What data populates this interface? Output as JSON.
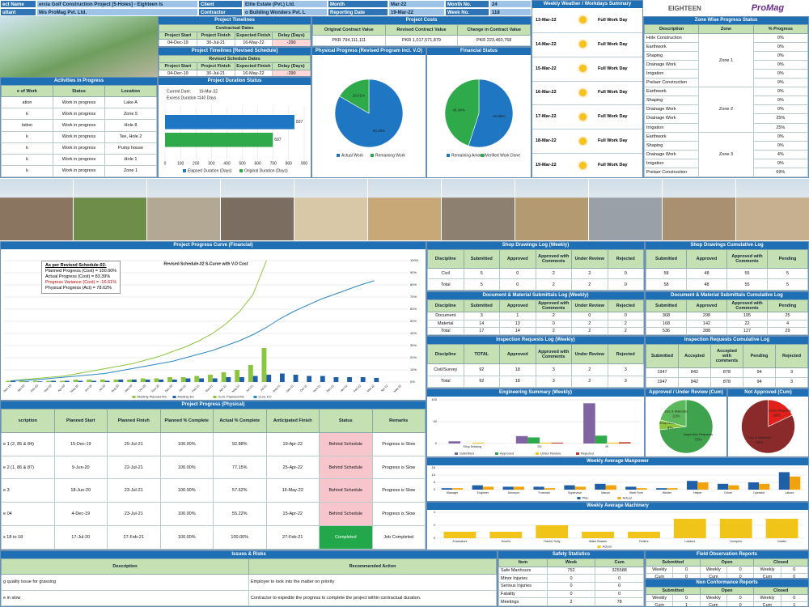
{
  "header": {
    "rows": [
      [
        "ect Name",
        "ercia Golf Construction Project [5-Holes] - Eighteen Is",
        "Client",
        "Elite Estate (Pvt.) Ltd.",
        "Month",
        "Mar-22",
        "Month No.",
        "24"
      ],
      [
        "ultant",
        "M/s ProMag Pvt. Ltd.",
        "Contractor",
        "o Building Wonders Pvt. L",
        "Reporting Date",
        "19-Mar-22",
        "Week No.",
        "118"
      ]
    ]
  },
  "logos": [
    "EIGHTEEN",
    "ProMag"
  ],
  "timelines": {
    "title": "Project Timelines",
    "subtitle": "Contractual Dates",
    "columns": [
      "Project Start",
      "Project Finish",
      "Expected Finish",
      "Delay (Days)"
    ],
    "rows": [
      [
        "04-Dec-19",
        "30-Jul-21",
        "16-May-22",
        {
          "text": "-290",
          "color": "#ffd7d7"
        }
      ]
    ]
  },
  "revised": {
    "title": "Project Timelines [Revised Schedule]",
    "subtitle": "Revised Schedule Dates",
    "columns": [
      "Project Start",
      "Project Finish",
      "Expected Finish",
      "Delay (Days)"
    ],
    "rows": [
      [
        "04-Dec-19",
        "30-Jul-21",
        "16-May-22",
        {
          "text": "-290",
          "color": "#ffd7d7"
        }
      ]
    ]
  },
  "costs": {
    "title": "Project Costs",
    "columns": [
      "Original Contract Value",
      "Revised Contract Value",
      "Change in Contract Value"
    ],
    "rows": [
      [
        "PKR 794,111,111",
        "PKR 1,017,571,879",
        "PKR 223,460,768"
      ]
    ]
  },
  "activities": {
    "title": "Activities in Progress",
    "columns": [
      "e of Work",
      "Status",
      "Location"
    ],
    "rows": [
      [
        "ation",
        "Work in progress",
        "Lake A"
      ],
      [
        "k",
        "Work in progress",
        "Zone 5"
      ],
      [
        "lation",
        "Work in progress",
        "Hole 8"
      ],
      [
        "k",
        "Work in progress",
        "Tee, Hole 2"
      ],
      [
        "k",
        "Work in progress",
        "Pump house"
      ],
      [
        "k",
        "Work in progress",
        "Hole 1"
      ],
      [
        "k",
        "Work in progress",
        "Zone 1"
      ]
    ]
  },
  "duration": {
    "title": "Project Duration Status",
    "info": [
      "Current Date:",
      "19-Mar-22",
      "Excess Duration =",
      "140 Days"
    ],
    "chart": {
      "type": "hbar",
      "series": [
        {
          "name": "Elapsed Duration (Days)",
          "color": "#1f77c4",
          "values": [
            837
          ]
        },
        {
          "name": "Original Duration (Days)",
          "color": "#2eaa4a",
          "values": [
            697
          ]
        }
      ],
      "xlim": [
        0,
        900
      ],
      "xticks": [
        0,
        100,
        200,
        300,
        400,
        500,
        600,
        700,
        800,
        900
      ],
      "grid": true
    }
  },
  "physical_pie": {
    "title": "Physical Progress (Revised Program incl. V.O)",
    "chart": {
      "type": "pie",
      "categories": [
        "Actual Work",
        "Remaining Work"
      ],
      "values": [
        83.39,
        16.61
      ],
      "value_labels": [
        "83.39%",
        "16.61%"
      ],
      "colors": [
        "#1f77c4",
        "#2eaa4a"
      ]
    }
  },
  "financial_pie": {
    "title": "Financial Status",
    "chart": {
      "type": "pie",
      "categories": [
        "Remaining Amount",
        "Verified Work Done"
      ],
      "values": [
        54.96,
        45.04
      ],
      "value_labels": [
        "54.96%",
        "45.04%"
      ],
      "colors": [
        "#1f77c4",
        "#2eaa4a"
      ]
    }
  },
  "weather": {
    "title": "Weekly Weather / Workdays Summary",
    "days": [
      {
        "date": "13-Mar-22",
        "condition": "Full Work Day"
      },
      {
        "date": "14-Mar-22",
        "condition": "Full Work Day"
      },
      {
        "date": "15-Mar-22",
        "condition": "Full Work Day"
      },
      {
        "date": "16-Mar-22",
        "condition": "Full Work Day"
      },
      {
        "date": "17-Mar-22",
        "condition": "Full Work Day"
      },
      {
        "date": "18-Mar-22",
        "condition": "Full Work Day"
      },
      {
        "date": "19-Mar-22",
        "condition": "Full Work Day"
      }
    ]
  },
  "zones": {
    "title": "Zone Wise Progress Status",
    "columns": [
      "Description",
      "Zone",
      "% Progress"
    ],
    "groups": [
      {
        "zone": "Zone 1",
        "items": [
          [
            "Hole Construction",
            "0%"
          ],
          [
            "Earthwork",
            "0%"
          ],
          [
            "Shaping",
            "0%"
          ],
          [
            "Drainage Work",
            "0%"
          ],
          [
            "Irrigation",
            "0%"
          ],
          [
            "Prelaer Construction",
            "0%"
          ]
        ]
      },
      {
        "zone": "Zone 2",
        "items": [
          [
            "Earthwork",
            "0%"
          ],
          [
            "Shaping",
            "0%"
          ],
          [
            "Drainage Work",
            "0%"
          ],
          [
            "Drainage Work",
            "25%"
          ],
          [
            "Irrigation",
            "25%"
          ]
        ]
      },
      {
        "zone": "Zone 3",
        "items": [
          [
            "Earthwork",
            "0%"
          ],
          [
            "Shaping",
            "0%"
          ],
          [
            "Drainage Work",
            "4%"
          ],
          [
            "Irrigation",
            "0%"
          ],
          [
            "Prelaer Construction",
            "69%"
          ]
        ]
      }
    ]
  },
  "scurve": {
    "title": "Project Progress Curve (Financial)",
    "summary": [
      "As per Revised Schedule-02-",
      "Planned Progress (Cost) = 100.00%",
      "Actual Progress (Cost) = 83.39%",
      "Progress Variance (Cost) = -16.61%",
      "Physical Progress (Act) = 78.62%"
    ],
    "chart": {
      "type": "bar",
      "title": "Revised Schedule-02 S-Curve with V.O Cost",
      "categories": [
        "Dec-19",
        "Jan-20",
        "Feb-20",
        "Mar-20",
        "Apr-20",
        "May-20",
        "Jun-20",
        "Jul-20",
        "Aug-20",
        "Sep-20",
        "Oct-20",
        "Nov-20",
        "Dec-20",
        "Jan-21",
        "Feb-21",
        "Mar-21",
        "Apr-21",
        "May-21",
        "Jun-21",
        "Jul-21",
        "Aug-21",
        "Sep-21",
        "Oct-21",
        "Nov-21",
        "Dec-21",
        "Jan-22",
        "Feb-22",
        "Mar-22",
        "Apr-22",
        "May-22"
      ],
      "series": [
        {
          "name": "Monthly Planned RS",
          "color": "#8cc63f",
          "values": [
            1,
            1,
            1,
            1,
            1,
            2,
            2,
            2,
            2,
            2,
            3,
            3,
            4,
            4,
            5,
            6,
            8,
            10,
            14,
            28,
            null,
            null,
            null,
            null,
            null,
            null,
            null,
            null,
            null,
            null
          ]
        },
        {
          "name": "Monthly EV",
          "color": "#1f5fa8",
          "values": [
            1,
            0.5,
            0.5,
            1,
            1,
            1,
            1,
            1,
            2,
            2,
            2,
            2,
            2,
            3,
            3,
            3,
            4,
            4,
            5,
            6,
            7,
            6,
            5,
            5,
            4,
            4,
            4,
            3.39,
            null,
            null
          ]
        },
        {
          "name": "Cum. Planned RS",
          "color": "#8cc63f",
          "kind": "line",
          "values": [
            1,
            2,
            3,
            4,
            5,
            7,
            9,
            11,
            13,
            15,
            18,
            21,
            25,
            29,
            34,
            40,
            48,
            58,
            72,
            100,
            null,
            null,
            null,
            null,
            null,
            null,
            null,
            null,
            null,
            null
          ]
        },
        {
          "name": "Cum. EV",
          "color": "#2e86c1",
          "kind": "line",
          "values": [
            1,
            1.5,
            2,
            3,
            4,
            5,
            6,
            7,
            9,
            11,
            13,
            15,
            17,
            20,
            23,
            26,
            30,
            34,
            39,
            45,
            52,
            58,
            63,
            68,
            72,
            76,
            80,
            83.39,
            null,
            null
          ]
        }
      ],
      "ylim": [
        0,
        100
      ],
      "yticks": [
        {
          "value": 0,
          "label": "0%"
        },
        {
          "value": 10,
          "label": "10%"
        },
        {
          "value": 20,
          "label": "20%"
        },
        {
          "value": 30,
          "label": "30%"
        },
        {
          "value": 40,
          "label": "40%"
        },
        {
          "value": 50,
          "label": "50%"
        },
        {
          "value": 60,
          "label": "60%"
        },
        {
          "value": 70,
          "label": "70%"
        },
        {
          "value": 80,
          "label": "80%"
        },
        {
          "value": 90,
          "label": "90%"
        },
        {
          "value": 100,
          "label": "100%"
        }
      ],
      "y_axis_side": "right",
      "grid": true
    }
  },
  "physical_table": {
    "title": "Project Progress (Physical)",
    "columns": [
      "scription",
      "Planned Start",
      "Planned Finish",
      "Planned % Complete",
      "Actual % Complete",
      "Anticipated Finish",
      "Status",
      "Remarks"
    ],
    "rows": [
      [
        "e 1 (2, 85 & 84)",
        "15-Dec-19",
        "25-Jul-21",
        "100.00%",
        "92.88%",
        "19-Apr-22",
        {
          "text": "Behind Schedule",
          "color": "#f6c6cc"
        },
        "Progress is Slow"
      ],
      [
        "e 2 (1, 86 & 87)",
        "9-Jun-20",
        "22-Jul-21",
        "100.00%",
        "77.15%",
        "25-Apr-22",
        {
          "text": "Behind Schedule",
          "color": "#f6c6cc"
        },
        "Progress is Slow"
      ],
      [
        "e 3",
        "18-Jun-20",
        "23-Jul-21",
        "100.00%",
        "57.62%",
        "16-May-22",
        {
          "text": "Behind Schedule",
          "color": "#f6c6cc"
        },
        "Progress is Slow"
      ],
      [
        "e 04",
        "4-Dec-19",
        "23-Jul-21",
        "100.00%",
        "55.22%",
        "15-Apr-22",
        {
          "text": "Behind Schedule",
          "color": "#f6c6cc"
        },
        "Progress is Slow"
      ],
      [
        "s 18 to 18",
        "17-Jul-20",
        "27-Feb-21",
        "100.00%",
        "100.00%",
        "27-Feb-21",
        {
          "text": "Completed",
          "color": "#22a84a"
        },
        "Job Completed"
      ]
    ]
  },
  "shop_weekly": {
    "title": "Shop Drawings Log (Weekly)",
    "columns": [
      "Discipline",
      "Submitted",
      "Approved",
      "Approved with Comments",
      "Under Review",
      "Rejected"
    ],
    "rows": [
      [
        "Civil",
        "5",
        "0",
        "2",
        "2",
        "0"
      ],
      [
        "Total",
        "5",
        "0",
        "2",
        "2",
        "0"
      ]
    ]
  },
  "shop_cum": {
    "title": "Shop Drawings Cumulative Log",
    "columns": [
      "Submitted",
      "Approved",
      "Approved with Comments",
      "Pending"
    ],
    "rows": [
      [
        "58",
        "48",
        "55",
        "5"
      ],
      [
        "58",
        "48",
        "55",
        "5"
      ]
    ]
  },
  "doc_weekly": {
    "title": "Document & Material Submittals Log (Weekly)",
    "columns": [
      "Discipline",
      "Submitted",
      "Approved",
      "Approved with Comments",
      "Under Review",
      "Rejected"
    ],
    "rows": [
      [
        "Document",
        "3",
        "1",
        "2",
        "0",
        "0"
      ],
      [
        "Material",
        "14",
        "13",
        "0",
        "2",
        "2"
      ],
      [
        "Total",
        "17",
        "14",
        "2",
        "2",
        "2"
      ]
    ]
  },
  "doc_cum": {
    "title": "Document & Material Submittals Cumulative Log",
    "columns": [
      "Submitted",
      "Approved",
      "Approved with Comments",
      "Pending"
    ],
    "rows": [
      [
        "368",
        "298",
        "105",
        "25"
      ],
      [
        "168",
        "142",
        "22",
        "4"
      ],
      [
        "536",
        "388",
        "127",
        "29"
      ]
    ]
  },
  "insp_weekly": {
    "title": "Inspection Requests Log (Weekly)",
    "columns": [
      "Discipline",
      "TOTAL",
      "Approved",
      "Approved with Comments",
      "Under Review",
      "Rejected"
    ],
    "rows": [
      [
        "Civil/Survey",
        "92",
        "18",
        "3",
        "2",
        "3"
      ],
      [
        "Total",
        "92",
        "18",
        "3",
        "2",
        "3"
      ]
    ]
  },
  "insp_cum": {
    "title": "Inspection Requests Cumulative Log",
    "columns": [
      "Submitted",
      "Accepted",
      "Accepted with comments",
      "Pending",
      "Rejected"
    ],
    "rows": [
      [
        "1947",
        "842",
        "878",
        "94",
        "3"
      ],
      [
        "1947",
        "842",
        "878",
        "94",
        "3"
      ]
    ]
  },
  "eng_summary": {
    "title": "Engineering Summary (Weekly)",
    "chart": {
      "type": "bar",
      "categories": [
        "Shop Drawing",
        "DS",
        "IR"
      ],
      "series": [
        {
          "name": "Submitted",
          "color": "#8064a2",
          "values": [
            5,
            17,
            92
          ]
        },
        {
          "name": "Approved",
          "color": "#2eaa4a",
          "values": [
            0,
            14,
            18
          ]
        },
        {
          "name": "Under Review",
          "color": "#f0c419",
          "values": [
            2,
            2,
            2
          ]
        },
        {
          "name": "Rejected",
          "color": "#c0392b",
          "values": [
            0,
            2,
            3
          ]
        }
      ],
      "ylim": [
        0,
        100
      ],
      "yticks": [
        0,
        50,
        100
      ],
      "grid": true
    }
  },
  "approved_pie": {
    "title": "Approved / Under Review (Cum)",
    "chart": {
      "type": "pie",
      "categories": [
        "Inspection Requests",
        "Shop Drawings",
        "Doc & Materials"
      ],
      "values": [
        73,
        6,
        21
      ],
      "value_labels": [
        "73%",
        "6%",
        "21%"
      ],
      "colors": [
        "#3fa34d",
        "#8cc63f",
        "#5cb85c"
      ]
    }
  },
  "not_approved_pie": {
    "title": "Not Approved (Cum)",
    "chart": {
      "type": "pie",
      "categories": [
        "Inspection Requests",
        "Doc & Materials"
      ],
      "values": [
        18,
        82
      ],
      "value_labels": [
        "18%",
        "82%"
      ],
      "colors": [
        "#e0201b",
        "#8b2a2a"
      ]
    }
  },
  "manpower": {
    "title": "Weekly Average Manpower",
    "chart": {
      "type": "bar",
      "categories": [
        "Manager",
        "Engineer",
        "Surveyor",
        "Foreman",
        "Supervisor",
        "Mason",
        "Steel Fixer",
        "Welder",
        "Helper",
        "Driver",
        "Operator",
        "Labour"
      ],
      "series": [
        {
          "name": "Plan",
          "color": "#1f5fa8",
          "values": [
            1,
            3,
            2,
            2,
            3,
            4,
            2,
            1,
            6,
            4,
            5,
            12
          ]
        },
        {
          "name": "Actual",
          "color": "#f0a30a",
          "values": [
            1,
            2,
            2,
            1,
            2,
            3,
            1,
            1,
            5,
            3,
            4,
            9
          ]
        }
      ],
      "ylim": [
        0,
        15
      ],
      "yticks": [
        0,
        5,
        10,
        15
      ],
      "grid": true
    }
  },
  "machinery": {
    "title": "Weekly Average Machinery",
    "chart": {
      "type": "bar",
      "categories": [
        "Excavators",
        "Dozers",
        "Tractor Trolly",
        "Water Bowser",
        "Rollers",
        "Loaders",
        "Dumpers",
        "Grader"
      ],
      "series": [
        {
          "name": "Actual",
          "color": "#f0c419",
          "values": [
            1,
            1,
            2,
            1,
            1,
            3,
            3,
            3
          ]
        }
      ],
      "ylim": [
        0,
        4
      ],
      "yticks": [
        0,
        2,
        4
      ],
      "grid": true
    }
  },
  "issues": {
    "title": "Issues & Risks",
    "columns": [
      "Description",
      "Recommended Action"
    ],
    "rows": [
      [
        "g quality issue for grassing",
        "Employer to look into the matter on priority"
      ],
      [
        "e in slow",
        "Contractor to expedite the progress to complete the project within contractual duration."
      ]
    ]
  },
  "safety": {
    "title": "Safety Statistics",
    "columns": [
      "Item",
      "Week",
      "Cum"
    ],
    "rows": [
      [
        "Safe Manhours",
        "752",
        "325588"
      ],
      [
        "Minor Injuries",
        "0",
        "0"
      ],
      [
        "Serious Injuries",
        "0",
        "0"
      ],
      [
        "Fatality",
        "0",
        "0"
      ],
      [
        "Meetings",
        "2",
        "78"
      ]
    ]
  },
  "field_obs": {
    "title": "Field Observation Reports",
    "columns": [
      "Submitted",
      "Open",
      "Closed"
    ],
    "rows": [
      [
        "Weekly",
        "0",
        "Weekly",
        "0",
        "Weekly",
        "0"
      ],
      [
        "Cum",
        "0",
        "Cum",
        "0",
        "Cum",
        "0"
      ]
    ]
  },
  "ncr": {
    "title": "Non Conformance Reports",
    "columns": [
      "Submitted",
      "Open",
      "Closed"
    ],
    "rows": [
      [
        "Weekly",
        "0",
        "Weekly",
        "0",
        "Weekly",
        "0"
      ],
      [
        "Cum",
        "1",
        "Cum",
        "0",
        "Cum",
        "1"
      ]
    ]
  }
}
